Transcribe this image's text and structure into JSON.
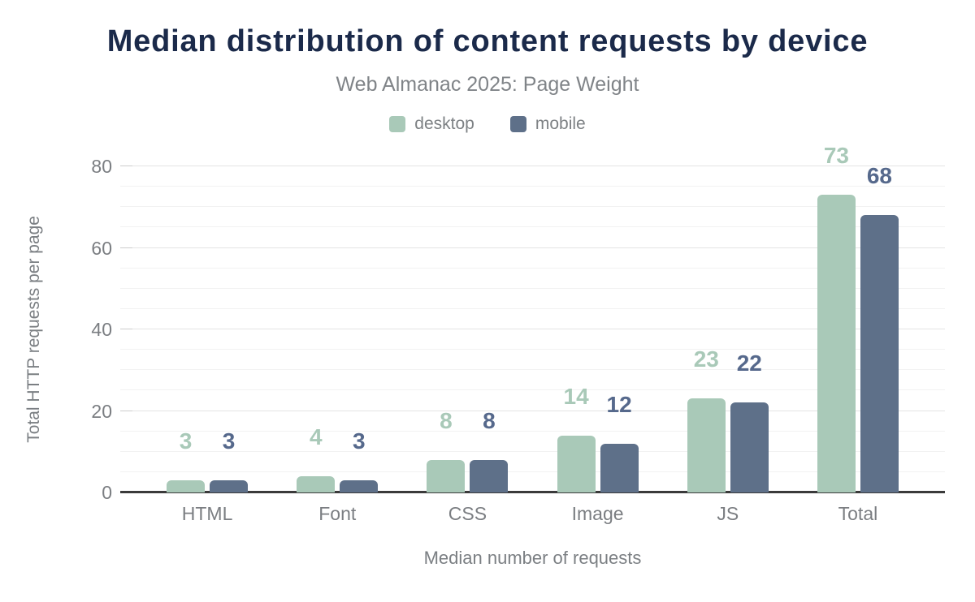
{
  "title": "Median distribution of content requests by device",
  "subtitle": "Web Almanac 2025: Page Weight",
  "legend": {
    "items": [
      {
        "label": "desktop",
        "color": "#a9c9b8"
      },
      {
        "label": "mobile",
        "color": "#5e7089"
      }
    ]
  },
  "chart_data": {
    "type": "bar",
    "categories": [
      "HTML",
      "Font",
      "CSS",
      "Image",
      "JS",
      "Total"
    ],
    "series": [
      {
        "name": "desktop",
        "color": "#a9c9b8",
        "label_color": "#a9c9b8",
        "values": [
          3,
          4,
          8,
          14,
          23,
          73
        ]
      },
      {
        "name": "mobile",
        "color": "#5e7089",
        "label_color": "#56698c",
        "values": [
          3,
          3,
          8,
          12,
          22,
          68
        ]
      }
    ],
    "title": "Median distribution of content requests by device",
    "subtitle": "Web Almanac 2025: Page Weight",
    "xlabel": "Median number of requests",
    "ylabel": "Total HTTP requests per page",
    "ylim": [
      0,
      80
    ],
    "yticks": [
      0,
      20,
      40,
      60,
      80
    ],
    "minor_grid_step": 5,
    "grid": true,
    "legend_position": "top",
    "data_labels": true
  },
  "colors": {
    "title_text": "#1b2a4a",
    "subtitle_text": "#808488",
    "axis_text": "#7b7e82",
    "axis_line": "#3a3a3a",
    "grid_major": "#e4e4e4",
    "grid_minor": "#f2f2f2",
    "background": "#ffffff"
  }
}
